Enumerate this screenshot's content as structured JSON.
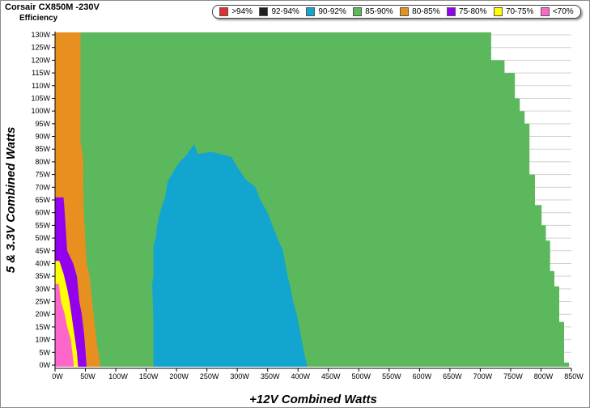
{
  "header": {
    "title": "Corsair CX850M -230V",
    "subtitle": "Efficiency"
  },
  "chart_data": {
    "type": "heatmap",
    "title": "Corsair CX850M -230V",
    "subtitle": "Efficiency",
    "xlabel": "+12V Combined Watts",
    "ylabel": "5 & 3.3V Combined Watts",
    "xlim": [
      0,
      850
    ],
    "ylim": [
      0,
      130
    ],
    "x_ticks": [
      "0W",
      "50W",
      "100W",
      "150W",
      "200W",
      "250W",
      "300W",
      "350W",
      "400W",
      "450W",
      "500W",
      "550W",
      "600W",
      "650W",
      "700W",
      "750W",
      "800W",
      "850W"
    ],
    "y_ticks": [
      "0W",
      "5W",
      "10W",
      "15W",
      "20W",
      "25W",
      "30W",
      "35W",
      "40W",
      "45W",
      "50W",
      "55W",
      "60W",
      "65W",
      "70W",
      "75W",
      "80W",
      "85W",
      "90W",
      "95W",
      "100W",
      "105W",
      "110W",
      "115W",
      "120W",
      "125W",
      "130W"
    ],
    "grid": true,
    "legend_position": "top",
    "legend": [
      {
        "label": ">94%",
        "color": "#e03030"
      },
      {
        "label": "92-94%",
        "color": "#202020"
      },
      {
        "label": "90-92%",
        "color": "#12a5d0"
      },
      {
        "label": "85-90%",
        "color": "#5cb85c"
      },
      {
        "label": "80-85%",
        "color": "#e8901f"
      },
      {
        "label": "75-80%",
        "color": "#9300ee"
      },
      {
        "label": "70-75%",
        "color": "#ffff00"
      },
      {
        "label": "<70%",
        "color": "#ff66cc"
      }
    ],
    "regions": [
      {
        "name": "85-90%",
        "color": "#5cb85c",
        "boundary": [
          [
            0,
            132
          ],
          [
            450,
            132
          ],
          [
            718,
            132
          ],
          [
            718,
            120
          ],
          [
            740,
            120
          ],
          [
            740,
            115
          ],
          [
            757,
            115
          ],
          [
            757,
            105
          ],
          [
            765,
            105
          ],
          [
            765,
            100
          ],
          [
            773,
            100
          ],
          [
            773,
            95
          ],
          [
            781,
            95
          ],
          [
            781,
            75
          ],
          [
            790,
            75
          ],
          [
            790,
            63
          ],
          [
            801,
            63
          ],
          [
            801,
            55
          ],
          [
            808,
            55
          ],
          [
            808,
            49
          ],
          [
            815,
            49
          ],
          [
            815,
            37
          ],
          [
            822,
            37
          ],
          [
            822,
            31
          ],
          [
            830,
            31
          ],
          [
            830,
            17
          ],
          [
            838,
            17
          ],
          [
            838,
            1
          ],
          [
            846,
            1
          ],
          [
            846,
            -1
          ],
          [
            0,
            -1
          ]
        ]
      },
      {
        "name": "80-85%",
        "color": "#e8901f",
        "boundary": [
          [
            0,
            132
          ],
          [
            42,
            132
          ],
          [
            42,
            88
          ],
          [
            46,
            82
          ],
          [
            47,
            62
          ],
          [
            50,
            48
          ],
          [
            52,
            40
          ],
          [
            57,
            35
          ],
          [
            61,
            25
          ],
          [
            68,
            10
          ],
          [
            75,
            -1
          ],
          [
            0,
            -1
          ]
        ]
      },
      {
        "name": "90-92%",
        "color": "#12a5d0",
        "boundary": [
          [
            162,
            -1
          ],
          [
            162,
            18
          ],
          [
            160,
            32
          ],
          [
            162,
            35
          ],
          [
            162,
            47
          ],
          [
            166,
            50
          ],
          [
            168,
            55
          ],
          [
            175,
            62
          ],
          [
            181,
            66
          ],
          [
            185,
            72
          ],
          [
            197,
            77
          ],
          [
            205,
            80
          ],
          [
            214,
            82
          ],
          [
            223,
            85
          ],
          [
            229,
            87
          ],
          [
            235,
            83
          ],
          [
            257,
            84
          ],
          [
            290,
            82
          ],
          [
            300,
            78
          ],
          [
            314,
            73
          ],
          [
            330,
            70
          ],
          [
            338,
            65
          ],
          [
            350,
            60
          ],
          [
            358,
            55
          ],
          [
            366,
            50
          ],
          [
            375,
            45
          ],
          [
            383,
            35
          ],
          [
            388,
            30
          ],
          [
            392,
            25
          ],
          [
            398,
            20
          ],
          [
            402,
            15
          ],
          [
            406,
            10
          ],
          [
            410,
            5
          ],
          [
            414,
            1
          ],
          [
            415,
            -1
          ]
        ]
      },
      {
        "name": "75-80%",
        "color": "#9300ee",
        "boundary": [
          [
            0,
            -1
          ],
          [
            0,
            66
          ],
          [
            14,
            66
          ],
          [
            16,
            60
          ],
          [
            20,
            45
          ],
          [
            30,
            40
          ],
          [
            36,
            35
          ],
          [
            40,
            25
          ],
          [
            44,
            20
          ],
          [
            48,
            12
          ],
          [
            50,
            6
          ],
          [
            52,
            -1
          ]
        ]
      },
      {
        "name": "70-75%",
        "color": "#ffff00",
        "boundary": [
          [
            0,
            -1
          ],
          [
            0,
            41
          ],
          [
            7,
            41
          ],
          [
            14,
            36
          ],
          [
            20,
            30
          ],
          [
            24,
            25
          ],
          [
            30,
            15
          ],
          [
            33,
            10
          ],
          [
            36,
            5
          ],
          [
            38,
            -1
          ]
        ]
      },
      {
        "name": "<70%",
        "color": "#ff66cc",
        "boundary": [
          [
            0,
            -1
          ],
          [
            0,
            32
          ],
          [
            6,
            32
          ],
          [
            10,
            25
          ],
          [
            16,
            20
          ],
          [
            20,
            15
          ],
          [
            26,
            10
          ],
          [
            28,
            6
          ],
          [
            30,
            2
          ],
          [
            31,
            -1
          ]
        ]
      }
    ]
  }
}
